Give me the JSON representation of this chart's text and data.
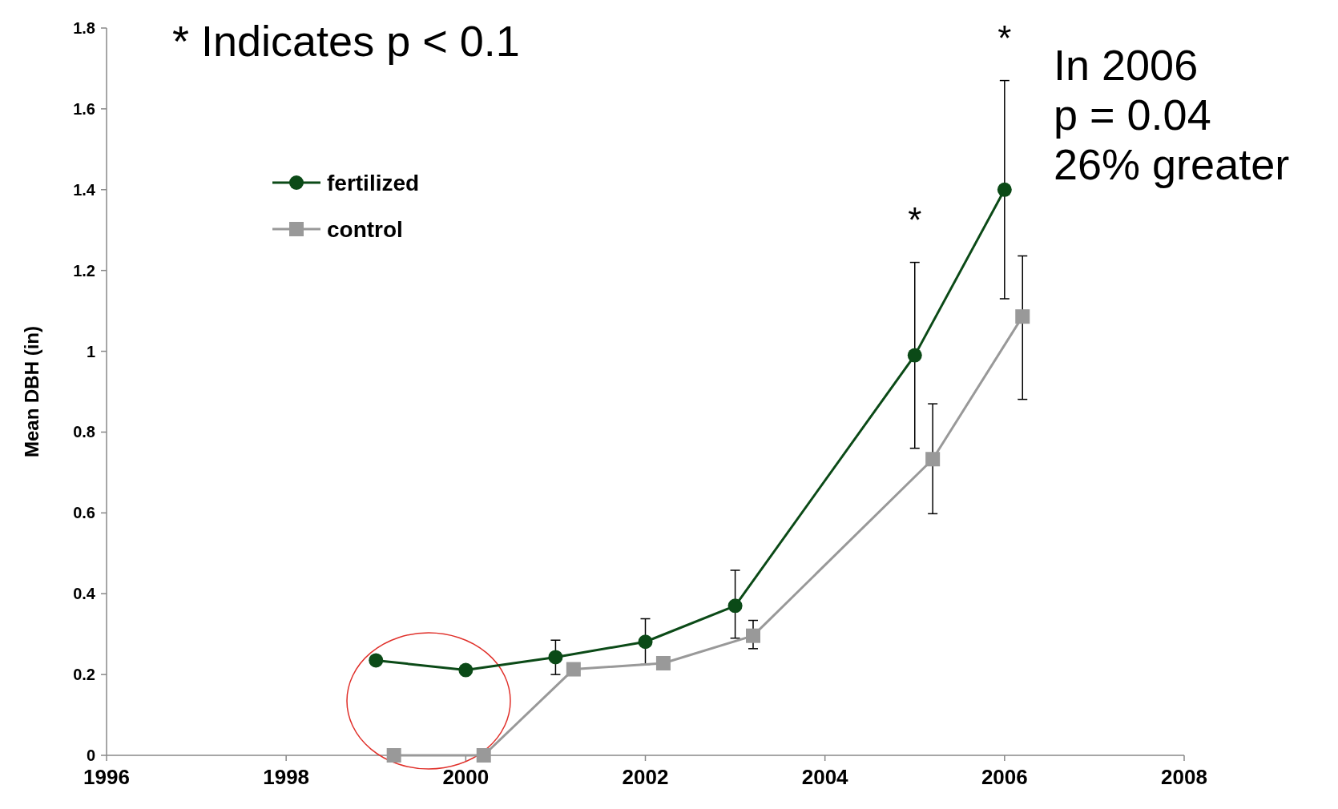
{
  "chart_data": {
    "type": "line",
    "ylabel": "Mean DBH (in)",
    "xlim": [
      1996,
      2008
    ],
    "xticks": [
      1996,
      1998,
      2000,
      2002,
      2004,
      2006,
      2008
    ],
    "ylim": [
      0,
      1.8
    ],
    "yticks": [
      0,
      0.2,
      0.4,
      0.6,
      0.8,
      1,
      1.2,
      1.4,
      1.6,
      1.8
    ],
    "grid": false,
    "legend": "top left",
    "series": [
      {
        "name": "fertilized",
        "color": "#0b4a17",
        "marker": "circle",
        "x": [
          1999,
          2000,
          2001,
          2002,
          2003,
          2005,
          2006
        ],
        "values": [
          0.235,
          0.211,
          0.243,
          0.281,
          0.37,
          0.99,
          1.4
        ],
        "errors": [
          null,
          null,
          [
            0.2,
            0.285
          ],
          [
            0.225,
            0.338
          ],
          [
            0.29,
            0.458
          ],
          [
            0.76,
            1.22
          ],
          [
            1.13,
            1.67
          ]
        ]
      },
      {
        "name": "control",
        "color": "#999999",
        "marker": "square",
        "x": [
          1999.2,
          2000.2,
          2001.2,
          2002.2,
          2003.2,
          2005.2,
          2006.2
        ],
        "values": [
          0,
          0,
          0.213,
          0.228,
          0.296,
          0.733,
          1.086
        ],
        "errors": [
          null,
          null,
          null,
          null,
          [
            0.264,
            0.334
          ],
          [
            0.598,
            0.87
          ],
          [
            0.881,
            1.236
          ]
        ]
      }
    ],
    "annotations": [
      "* Indicates p < 0.1",
      {
        "text": "*",
        "x": 2005,
        "y": 1.22
      },
      {
        "text": "*",
        "x": 2006,
        "y": 1.67
      },
      "In 2006\np = 0.04\n26% greater"
    ]
  }
}
